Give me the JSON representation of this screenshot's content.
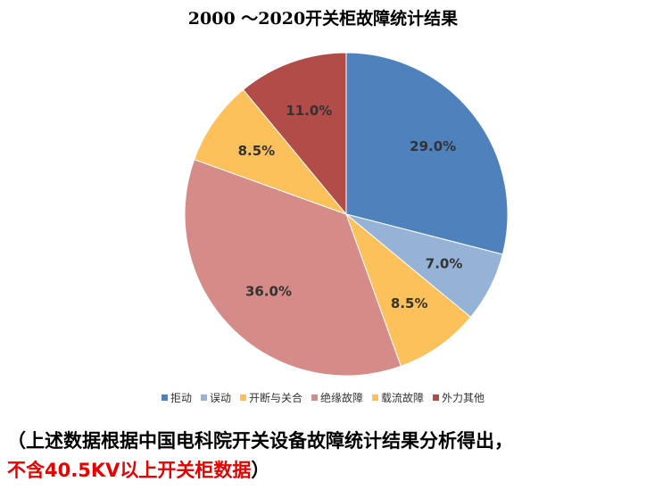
{
  "chart_data": {
    "type": "pie",
    "title": "2000 ～2020开关柜故障统计结果",
    "categories": [
      "拒动",
      "误动",
      "开断与关合",
      "绝缘故障",
      "载流故障",
      "外力其他"
    ],
    "values": [
      29.0,
      7.0,
      8.5,
      36.0,
      8.5,
      11.0
    ],
    "labels": [
      "29.0%",
      "7.0%",
      "8.5%",
      "36.0%",
      "8.5%",
      "11.0%"
    ],
    "colors": [
      "#4f81bd",
      "#95b3d7",
      "#fcc15a",
      "#d58b87",
      "#fcc15a",
      "#b24c49"
    ],
    "legend_position": "bottom",
    "start_angle": "12 o'clock",
    "direction": "clockwise"
  },
  "note": {
    "line1": "（上述数据根据中国电科院开关设备故障统计结果分析得出，",
    "line2_red": "不含40.5KV以上开关柜数据",
    "line2_end": "）"
  }
}
